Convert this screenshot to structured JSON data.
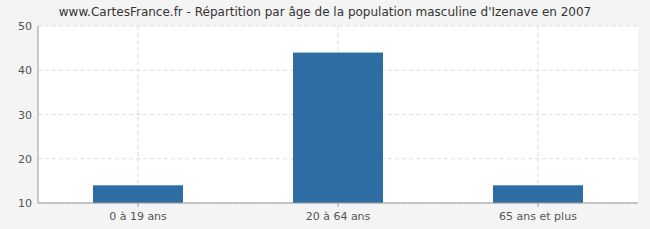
{
  "chart_data": {
    "type": "bar",
    "title": "www.CartesFrance.fr - Répartition par âge de la population masculine d'Izenave en 2007",
    "categories": [
      "0 à 19 ans",
      "20 à 64 ans",
      "65 ans et plus"
    ],
    "values": [
      14,
      44,
      14
    ],
    "color": "#2e6da4",
    "ylim": [
      10,
      50
    ],
    "yticks": [
      10,
      20,
      30,
      40,
      50
    ],
    "grid": true
  }
}
